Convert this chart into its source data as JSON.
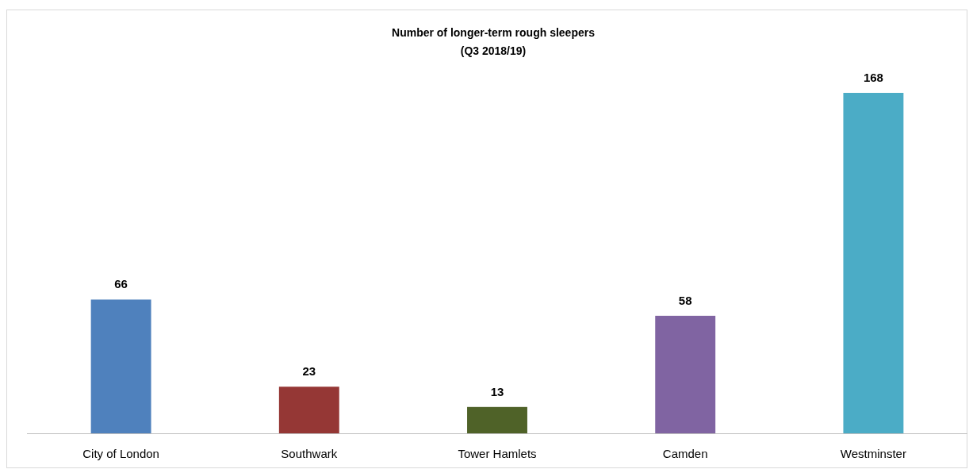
{
  "chart_data": {
    "type": "bar",
    "title": "Number of longer-term rough sleepers",
    "subtitle": "(Q3 2018/19)",
    "categories": [
      "City of London",
      "Southwark",
      "Tower Hamlets",
      "Camden",
      "Westminster"
    ],
    "values": [
      66,
      23,
      13,
      58,
      168
    ],
    "colors": [
      "#4f81bd",
      "#953735",
      "#4f6228",
      "#8064a2",
      "#4bacc6"
    ],
    "data_labels": true
  }
}
